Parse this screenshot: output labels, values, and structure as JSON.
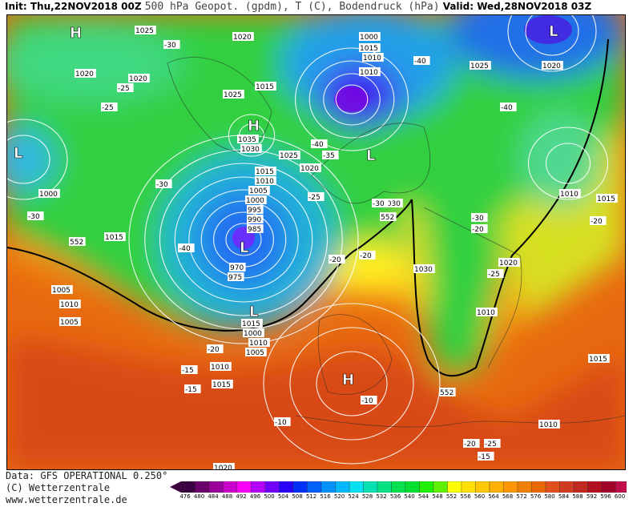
{
  "header": {
    "init": "Init: Thu,22NOV2018 00Z",
    "product": "500 hPa Geopot. (gpdm), T (C), Bodendruck (hPa)",
    "valid": "Valid: Wed,28NOV2018 03Z"
  },
  "footer": {
    "data": "Data: GFS OPERATIONAL 0.250°",
    "copyright": "(C) Wetterzentrale",
    "url": "www.wetterzentrale.de"
  },
  "colorbar": {
    "ticks": [
      476,
      480,
      484,
      488,
      492,
      496,
      500,
      504,
      508,
      512,
      516,
      520,
      524,
      528,
      532,
      536,
      540,
      544,
      548,
      552,
      556,
      560,
      564,
      568,
      572,
      576,
      580,
      584,
      588,
      592,
      596,
      600
    ],
    "colors": [
      "#3a0040",
      "#6a006a",
      "#9a009a",
      "#cc00cc",
      "#ff00ff",
      "#b400ff",
      "#7000ff",
      "#2a00ff",
      "#0030ff",
      "#0060ff",
      "#0090ff",
      "#00b8ff",
      "#00e0f0",
      "#00e0b0",
      "#00e080",
      "#00e050",
      "#00e030",
      "#20f000",
      "#60f000",
      "#ffff00",
      "#ffe000",
      "#ffc800",
      "#ffb000",
      "#ff9800",
      "#f08000",
      "#e86800",
      "#e05020",
      "#d03c20",
      "#c02820",
      "#b01020",
      "#a00028",
      "#c0104a"
    ]
  },
  "map": {
    "pressure_systems": [
      "H",
      "H",
      "H",
      "L",
      "L",
      "L",
      "L",
      "L"
    ],
    "isobar_labels": [
      "1025",
      "1020",
      "1020",
      "1020",
      "1015",
      "1025",
      "1035",
      "1030",
      "1025",
      "1020",
      "1015",
      "1010",
      "1005",
      "1000",
      "995",
      "990",
      "985",
      "970",
      "975",
      "1000",
      "1015",
      "1010",
      "1005",
      "1000",
      "1030",
      "1030",
      "1025",
      "1020",
      "1015",
      "1010",
      "1015",
      "1010",
      "1005",
      "1005",
      "1000",
      "1010",
      "1015",
      "1020",
      "1010",
      "1010",
      "1015",
      "1010",
      "1015",
      "1020",
      "1010"
    ],
    "temperature_labels": [
      "-30",
      "-25",
      "-30",
      "-40",
      "-40",
      "-40",
      "-35",
      "-30",
      "-25",
      "-30",
      "-40",
      "-20",
      "-25",
      "-15",
      "-20",
      "-10",
      "-10",
      "-25",
      "-20",
      "-15",
      "-15",
      "-20",
      "-20",
      "-25",
      "-30",
      "-20"
    ],
    "height_labels": [
      "552",
      "552",
      "552"
    ]
  }
}
